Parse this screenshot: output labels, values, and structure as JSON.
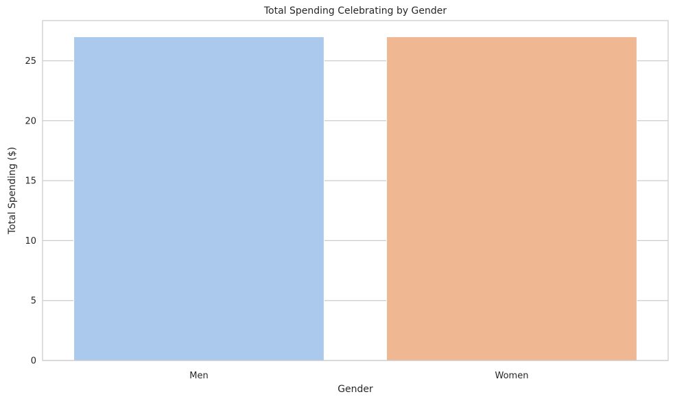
{
  "chart_data": {
    "type": "bar",
    "title": "Total Spending Celebrating by Gender",
    "xlabel": "Gender",
    "ylabel": "Total Spending ($)",
    "categories": [
      "Men",
      "Women"
    ],
    "values": [
      27,
      27
    ],
    "colors": [
      "#abc9ec",
      "#efb792"
    ],
    "ylim": [
      0,
      28.35
    ],
    "yticks": [
      0,
      5,
      10,
      15,
      20,
      25
    ],
    "grid": true,
    "legend": "none"
  }
}
